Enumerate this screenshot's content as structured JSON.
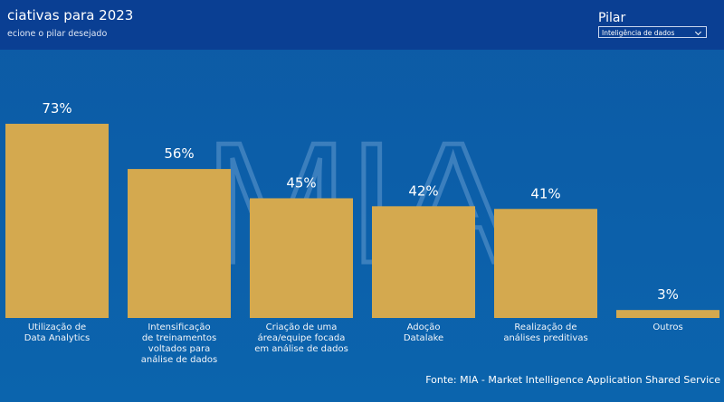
{
  "header": {
    "title": "ciativas para 2023",
    "subtitle": "ecione o pilar desejado",
    "filter_label": "Pilar",
    "filter_value": "Inteligência de dados"
  },
  "watermark": "MIA",
  "chart_data": {
    "type": "bar",
    "categories": [
      "Utilização de\nData Analytics",
      "Intensificação\nde treinamentos\nvoltados para\nanálise de dados",
      "Criação de uma\nárea/equipe focada\nem análise de dados",
      "Adoção\nDatalake",
      "Realização de\nanálises preditivas",
      "Outros"
    ],
    "values": [
      73,
      56,
      45,
      42,
      41,
      3
    ],
    "value_labels": [
      "73%",
      "56%",
      "45%",
      "42%",
      "41%",
      "3%"
    ],
    "color": "#d4a94f"
  },
  "footer": {
    "source": "Fonte: MIA - Market Intelligence Application Shared Service"
  }
}
